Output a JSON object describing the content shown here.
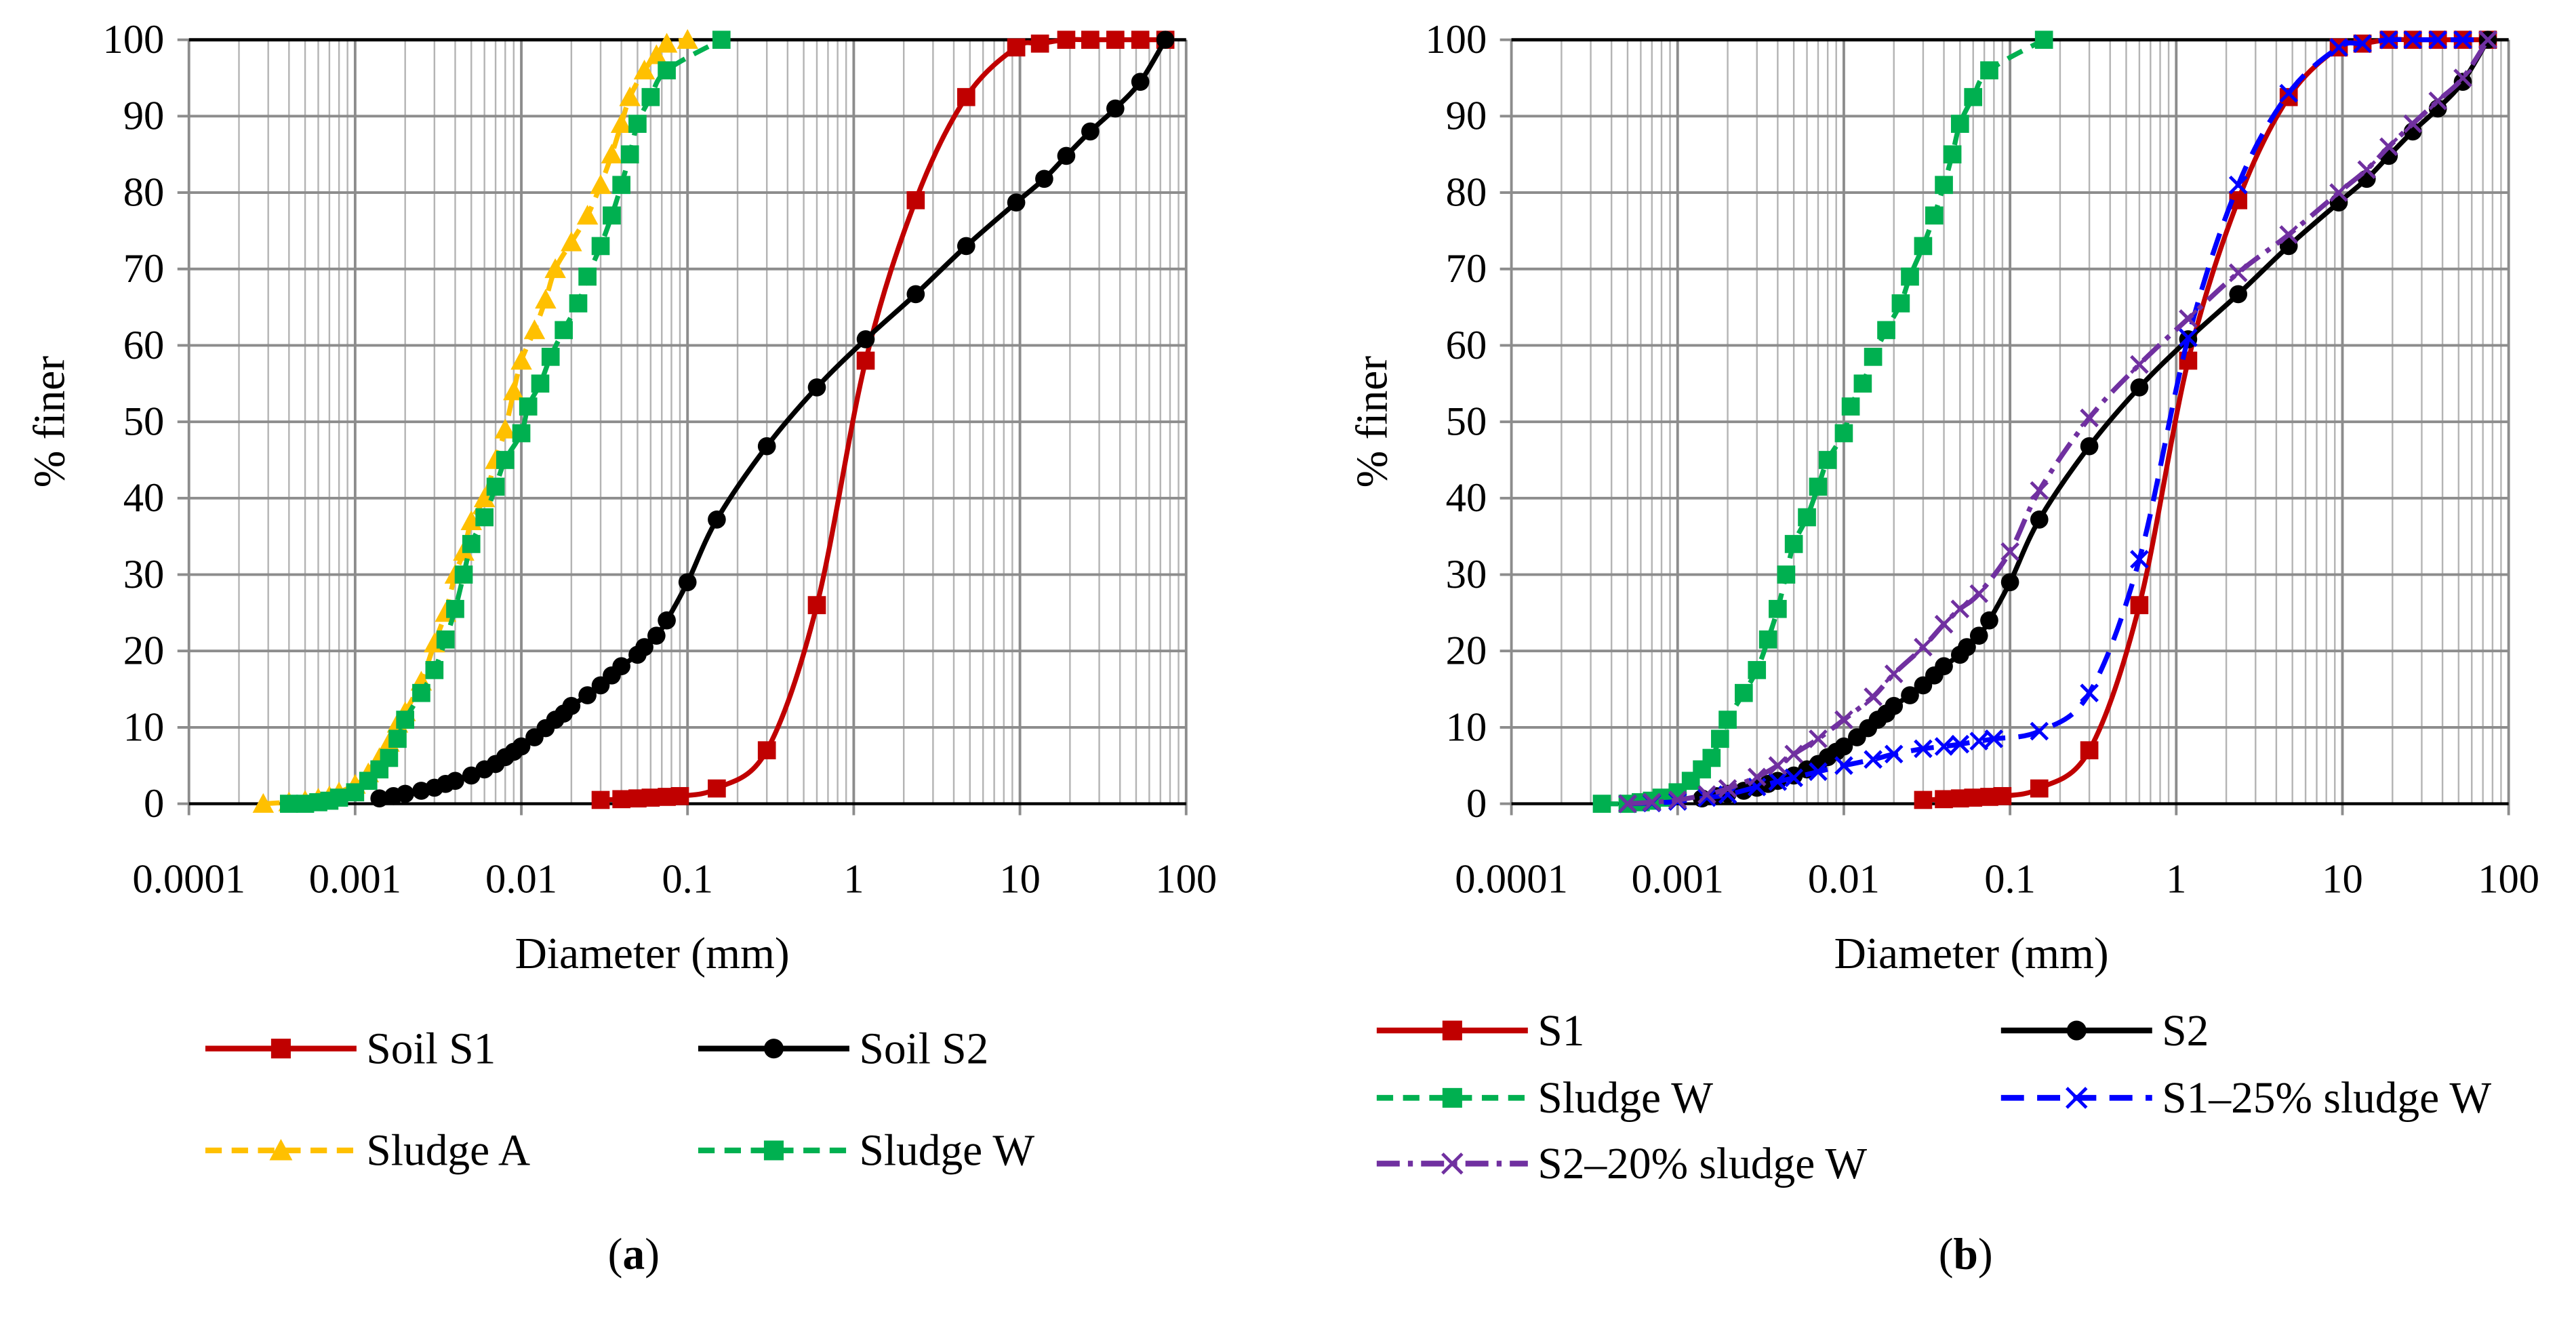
{
  "colors": {
    "S1": "#c00000",
    "S2": "#000000",
    "sludgeA": "#ffc000",
    "sludgeW": "#00b050",
    "S1mix": "#0000ff",
    "S2mix": "#7030a0"
  },
  "chart_data": [
    {
      "id": "a",
      "caption": "a",
      "type": "line",
      "xscale": "log",
      "xlabel": "Diameter (mm)",
      "ylabel": "% finer",
      "xlim": [
        0.0001,
        100
      ],
      "ylim": [
        0,
        100
      ],
      "xticks": [
        "0.0001",
        "0.001",
        "0.01",
        "0.1",
        "1",
        "10",
        "100"
      ],
      "yticks": [
        "0",
        "10",
        "20",
        "30",
        "40",
        "50",
        "60",
        "70",
        "80",
        "90",
        "100"
      ],
      "grid": true,
      "legend_position": "bottom",
      "series": [
        {
          "name": "Soil S1",
          "color": "#c00000",
          "marker": "square",
          "dash": "solid",
          "x": [
            0.03,
            0.04,
            0.05,
            0.06,
            0.075,
            0.09,
            0.15,
            0.3,
            0.6,
            1.18,
            2.36,
            4.75,
            9.5,
            13.2,
            19,
            26.5,
            37.5,
            53,
            75
          ],
          "y": [
            0.5,
            0.6,
            0.7,
            0.8,
            0.9,
            1.0,
            2,
            7,
            26,
            58,
            79,
            92.5,
            99,
            99.5,
            100,
            100,
            100,
            100,
            100
          ]
        },
        {
          "name": "Soil S2",
          "color": "#000000",
          "marker": "circle",
          "dash": "solid",
          "x": [
            0.0014,
            0.0017,
            0.002,
            0.0025,
            0.003,
            0.0035,
            0.004,
            0.005,
            0.006,
            0.007,
            0.008,
            0.009,
            0.01,
            0.012,
            0.014,
            0.016,
            0.018,
            0.02,
            0.025,
            0.03,
            0.035,
            0.04,
            0.05,
            0.055,
            0.065,
            0.075,
            0.1,
            0.15,
            0.3,
            0.6,
            1.18,
            2.36,
            4.75,
            9.5,
            14,
            19,
            26.5,
            37.5,
            53,
            75
          ],
          "y": [
            0.7,
            1,
            1.3,
            1.7,
            2.1,
            2.6,
            3,
            3.7,
            4.5,
            5.2,
            6.1,
            6.8,
            7.5,
            8.7,
            9.9,
            11,
            11.8,
            12.8,
            14.2,
            15.5,
            16.8,
            18,
            19.5,
            20.5,
            22,
            24,
            29,
            37.2,
            46.8,
            54.5,
            60.8,
            66.7,
            73,
            78.7,
            81.8,
            84.8,
            88,
            91,
            94.5,
            100
          ]
        },
        {
          "name": "Sludge A",
          "color": "#ffc000",
          "marker": "triangle",
          "dash": "dash",
          "x": [
            0.00028,
            0.0004,
            0.0005,
            0.0006,
            0.0007,
            0.0008,
            0.001,
            0.0012,
            0.0014,
            0.0016,
            0.0018,
            0.002,
            0.0025,
            0.003,
            0.0035,
            0.004,
            0.0045,
            0.005,
            0.006,
            0.007,
            0.008,
            0.009,
            0.01,
            0.012,
            0.014,
            0.016,
            0.02,
            0.025,
            0.03,
            0.035,
            0.04,
            0.045,
            0.055,
            0.065,
            0.075,
            0.1
          ],
          "y": [
            0,
            0.2,
            0.4,
            0.7,
            1,
            1.5,
            2.5,
            4,
            6,
            8,
            10.5,
            12,
            16,
            21,
            25,
            30,
            33,
            37,
            40,
            45,
            49,
            54,
            58,
            62,
            66,
            70,
            73.5,
            77,
            81,
            85,
            89,
            92.5,
            96,
            98,
            99.5,
            100
          ]
        },
        {
          "name": "Sludge W",
          "color": "#00b050",
          "marker": "square",
          "dash": "dash",
          "x": [
            0.0004,
            0.0005,
            0.0006,
            0.0007,
            0.0008,
            0.001,
            0.0012,
            0.0014,
            0.0016,
            0.0018,
            0.002,
            0.0025,
            0.003,
            0.0035,
            0.004,
            0.0045,
            0.005,
            0.006,
            0.007,
            0.008,
            0.01,
            0.011,
            0.013,
            0.015,
            0.018,
            0.022,
            0.025,
            0.03,
            0.035,
            0.04,
            0.045,
            0.05,
            0.06,
            0.075,
            0.16
          ],
          "y": [
            0,
            0,
            0.2,
            0.4,
            0.8,
            1.5,
            3,
            4.5,
            6,
            8.5,
            11,
            14.5,
            17.5,
            21.5,
            25.5,
            30,
            34,
            37.5,
            41.5,
            45,
            48.5,
            52,
            55,
            58.5,
            62,
            65.5,
            69,
            73,
            77,
            81,
            85,
            89,
            92.5,
            96,
            100
          ]
        }
      ]
    },
    {
      "id": "b",
      "caption": "b",
      "type": "line",
      "xscale": "log",
      "xlabel": "Diameter (mm)",
      "ylabel": "% finer",
      "xlim": [
        0.0001,
        100
      ],
      "ylim": [
        0,
        100
      ],
      "xticks": [
        "0.0001",
        "0.001",
        "0.01",
        "0.1",
        "1",
        "10",
        "100"
      ],
      "yticks": [
        "0",
        "10",
        "20",
        "30",
        "40",
        "50",
        "60",
        "70",
        "80",
        "90",
        "100"
      ],
      "grid": true,
      "legend_position": "bottom",
      "series": [
        {
          "name": "S1",
          "color": "#c00000",
          "marker": "square",
          "dash": "solid",
          "x": [
            0.03,
            0.04,
            0.05,
            0.06,
            0.075,
            0.09,
            0.15,
            0.3,
            0.6,
            1.18,
            2.36,
            4.75,
            9.5,
            13.2,
            19,
            26.5,
            37.5,
            53,
            75
          ],
          "y": [
            0.5,
            0.6,
            0.7,
            0.8,
            0.9,
            1.0,
            2,
            7,
            26,
            58,
            79,
            92.5,
            99,
            99.5,
            100,
            100,
            100,
            100,
            100
          ]
        },
        {
          "name": "S2",
          "color": "#000000",
          "marker": "circle",
          "dash": "solid",
          "x": [
            0.0014,
            0.0017,
            0.002,
            0.0025,
            0.003,
            0.0035,
            0.004,
            0.005,
            0.006,
            0.007,
            0.008,
            0.009,
            0.01,
            0.012,
            0.014,
            0.016,
            0.018,
            0.02,
            0.025,
            0.03,
            0.035,
            0.04,
            0.05,
            0.055,
            0.065,
            0.075,
            0.1,
            0.15,
            0.3,
            0.6,
            1.18,
            2.36,
            4.75,
            9.5,
            14,
            19,
            26.5,
            37.5,
            53,
            75
          ],
          "y": [
            0.7,
            1,
            1.3,
            1.7,
            2.1,
            2.6,
            3,
            3.7,
            4.5,
            5.2,
            6.1,
            6.8,
            7.5,
            8.7,
            9.9,
            11,
            11.8,
            12.8,
            14.2,
            15.5,
            16.8,
            18,
            19.5,
            20.5,
            22,
            24,
            29,
            37.2,
            46.8,
            54.5,
            60.8,
            66.7,
            73,
            78.7,
            81.8,
            84.8,
            88,
            91,
            94.5,
            100
          ]
        },
        {
          "name": "Sludge W",
          "color": "#00b050",
          "marker": "square",
          "dash": "dash",
          "x": [
            0.00035,
            0.0005,
            0.0006,
            0.0007,
            0.0008,
            0.001,
            0.0012,
            0.0014,
            0.0016,
            0.0018,
            0.002,
            0.0025,
            0.003,
            0.0035,
            0.004,
            0.0045,
            0.005,
            0.006,
            0.007,
            0.008,
            0.01,
            0.011,
            0.013,
            0.015,
            0.018,
            0.022,
            0.025,
            0.03,
            0.035,
            0.04,
            0.045,
            0.05,
            0.06,
            0.075,
            0.16
          ],
          "y": [
            0,
            0,
            0.2,
            0.4,
            0.8,
            1.5,
            3,
            4.5,
            6,
            8.5,
            11,
            14.5,
            17.5,
            21.5,
            25.5,
            30,
            34,
            37.5,
            41.5,
            45,
            48.5,
            52,
            55,
            58.5,
            62,
            65.5,
            69,
            73,
            77,
            81,
            85,
            89,
            92.5,
            96,
            100
          ]
        },
        {
          "name": "S1–25% sludge W",
          "color": "#0000ff",
          "marker": "x",
          "dash": "longdash",
          "x": [
            0.0005,
            0.0007,
            0.001,
            0.0015,
            0.002,
            0.003,
            0.004,
            0.005,
            0.007,
            0.01,
            0.015,
            0.02,
            0.03,
            0.04,
            0.05,
            0.065,
            0.08,
            0.15,
            0.3,
            0.6,
            1.18,
            2.36,
            4.75,
            9.5,
            13.2,
            19,
            26.5,
            37.5,
            53,
            75
          ],
          "y": [
            0,
            0.1,
            0.3,
            0.8,
            1.2,
            2.2,
            2.9,
            3.4,
            4.2,
            5,
            5.8,
            6.5,
            7.2,
            7.5,
            7.8,
            8.2,
            8.5,
            9.5,
            14.5,
            32,
            61,
            81,
            93,
            99,
            99.5,
            100,
            100,
            100,
            100,
            100
          ]
        },
        {
          "name": "S2–20% sludge W",
          "color": "#7030a0",
          "marker": "x",
          "dash": "dashdot",
          "x": [
            0.0005,
            0.0007,
            0.001,
            0.0015,
            0.002,
            0.003,
            0.004,
            0.005,
            0.007,
            0.01,
            0.015,
            0.02,
            0.03,
            0.04,
            0.05,
            0.065,
            0.1,
            0.15,
            0.3,
            0.6,
            1.18,
            2.36,
            4.75,
            9.5,
            14,
            19,
            26.5,
            37.5,
            53,
            75
          ],
          "y": [
            0,
            0.2,
            0.5,
            1.2,
            2,
            3.5,
            5,
            6.5,
            8.5,
            11,
            14,
            17,
            20.5,
            23.5,
            25.5,
            27.5,
            33,
            41,
            50.5,
            57.5,
            63.5,
            69.5,
            74.5,
            80,
            83,
            86,
            89,
            92,
            95,
            100
          ]
        }
      ]
    }
  ]
}
